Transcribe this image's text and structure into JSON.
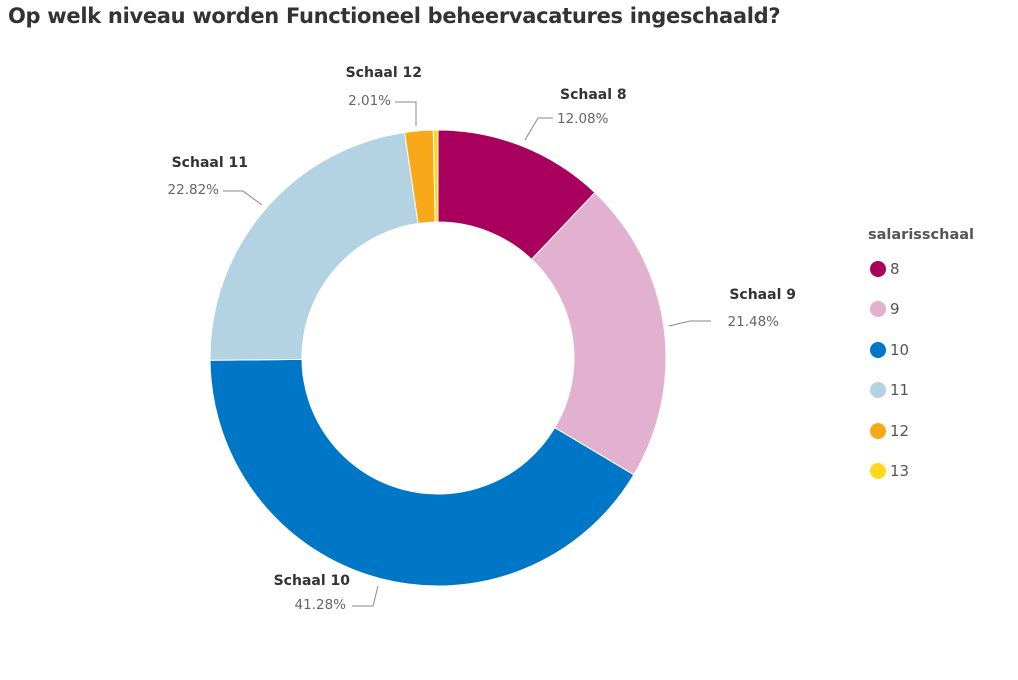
{
  "chart_data": {
    "type": "pie",
    "variant": "donut",
    "title": "Op welk niveau worden Functioneel beheervacatures ingeschaald?",
    "legend_title": "salarisschaal",
    "legend_position": "right",
    "categories": [
      "8",
      "9",
      "10",
      "11",
      "12",
      "13"
    ],
    "values": [
      12.08,
      21.48,
      41.28,
      22.82,
      2.01,
      0.33
    ],
    "slice_labels": [
      "Schaal 8",
      "Schaal 9",
      "Schaal 10",
      "Schaal 11",
      "Schaal 12",
      ""
    ],
    "percent_labels": [
      "12.08%",
      "21.48%",
      "41.28%",
      "22.82%",
      "2.01%",
      ""
    ],
    "colors": [
      "#a8005c",
      "#e3b1d0",
      "#0077c6",
      "#b3d3e3",
      "#f7a919",
      "#ffd91a"
    ]
  }
}
